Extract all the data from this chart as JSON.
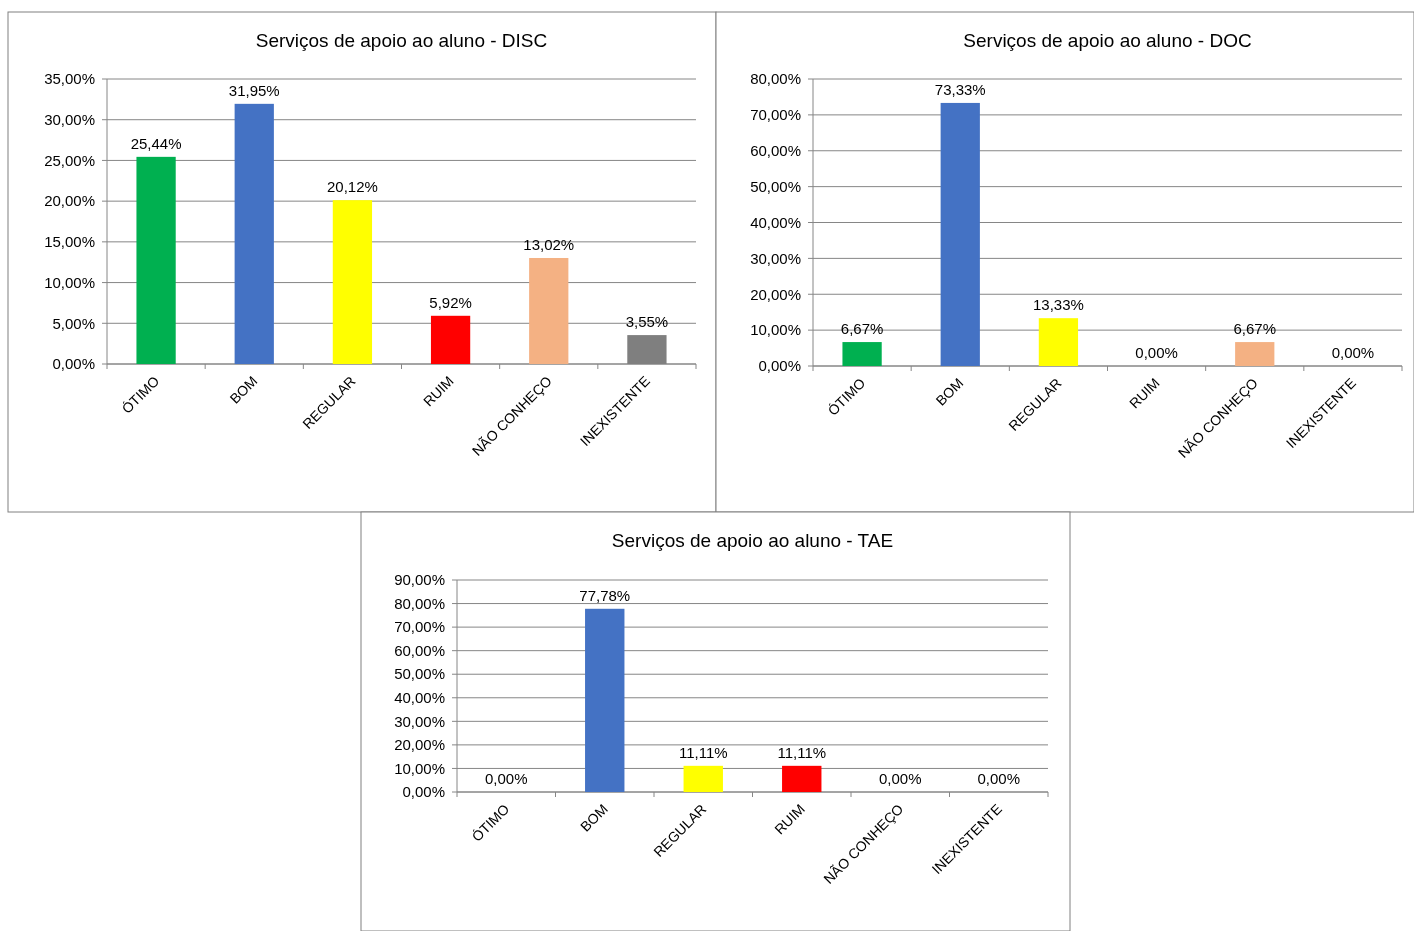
{
  "chart_data": [
    {
      "type": "bar",
      "title": "Serviços de apoio ao aluno - DISC",
      "categories": [
        "ÓTIMO",
        "BOM",
        "REGULAR",
        "RUIM",
        "NÃO CONHEÇO",
        "INEXISTENTE"
      ],
      "values": [
        25.44,
        31.95,
        20.12,
        5.92,
        13.02,
        3.55
      ],
      "value_labels": [
        "25,44%",
        "31,95%",
        "20,12%",
        "5,92%",
        "13,02%",
        "3,55%"
      ],
      "colors": [
        "#00b050",
        "#4472c4",
        "#ffff00",
        "#ff0000",
        "#f4b183",
        "#7f7f7f"
      ],
      "ylim": [
        0,
        35
      ],
      "yticks": [
        {
          "value": 0,
          "label": "0,00%"
        },
        {
          "value": 5,
          "label": "5,00%"
        },
        {
          "value": 10,
          "label": "10,00%"
        },
        {
          "value": 15,
          "label": "15,00%"
        },
        {
          "value": 20,
          "label": "20,00%"
        },
        {
          "value": 25,
          "label": "25,00%"
        },
        {
          "value": 30,
          "label": "30,00%"
        },
        {
          "value": 35,
          "label": "35,00%"
        }
      ],
      "grid": "y"
    },
    {
      "type": "bar",
      "title": "Serviços de apoio ao aluno - DOC",
      "categories": [
        "ÓTIMO",
        "BOM",
        "REGULAR",
        "RUIM",
        "NÃO CONHEÇO",
        "INEXISTENTE"
      ],
      "values": [
        6.67,
        73.33,
        13.33,
        0,
        6.67,
        0
      ],
      "value_labels": [
        "6,67%",
        "73,33%",
        "13,33%",
        "0,00%",
        "6,67%",
        "0,00%"
      ],
      "colors": [
        "#00b050",
        "#4472c4",
        "#ffff00",
        "#ff0000",
        "#f4b183",
        "#7f7f7f"
      ],
      "ylim": [
        0,
        80
      ],
      "yticks": [
        {
          "value": 0,
          "label": "0,00%"
        },
        {
          "value": 10,
          "label": "10,00%"
        },
        {
          "value": 20,
          "label": "20,00%"
        },
        {
          "value": 30,
          "label": "30,00%"
        },
        {
          "value": 40,
          "label": "40,00%"
        },
        {
          "value": 50,
          "label": "50,00%"
        },
        {
          "value": 60,
          "label": "60,00%"
        },
        {
          "value": 70,
          "label": "70,00%"
        },
        {
          "value": 80,
          "label": "80,00%"
        }
      ],
      "grid": "y"
    },
    {
      "type": "bar",
      "title": "Serviços de apoio ao aluno - TAE",
      "categories": [
        "ÓTIMO",
        "BOM",
        "REGULAR",
        "RUIM",
        "NÃO CONHEÇO",
        "INEXISTENTE"
      ],
      "values": [
        0,
        77.78,
        11.11,
        11.11,
        0,
        0
      ],
      "value_labels": [
        "0,00%",
        "77,78%",
        "11,11%",
        "11,11%",
        "0,00%",
        "0,00%"
      ],
      "colors": [
        "#00b050",
        "#4472c4",
        "#ffff00",
        "#ff0000",
        "#f4b183",
        "#7f7f7f"
      ],
      "ylim": [
        0,
        90
      ],
      "yticks": [
        {
          "value": 0,
          "label": "0,00%"
        },
        {
          "value": 10,
          "label": "10,00%"
        },
        {
          "value": 20,
          "label": "20,00%"
        },
        {
          "value": 30,
          "label": "30,00%"
        },
        {
          "value": 40,
          "label": "40,00%"
        },
        {
          "value": 50,
          "label": "50,00%"
        },
        {
          "value": 60,
          "label": "60,00%"
        },
        {
          "value": 70,
          "label": "70,00%"
        },
        {
          "value": 80,
          "label": "80,00%"
        },
        {
          "value": 90,
          "label": "90,00%"
        }
      ],
      "grid": "y"
    }
  ]
}
